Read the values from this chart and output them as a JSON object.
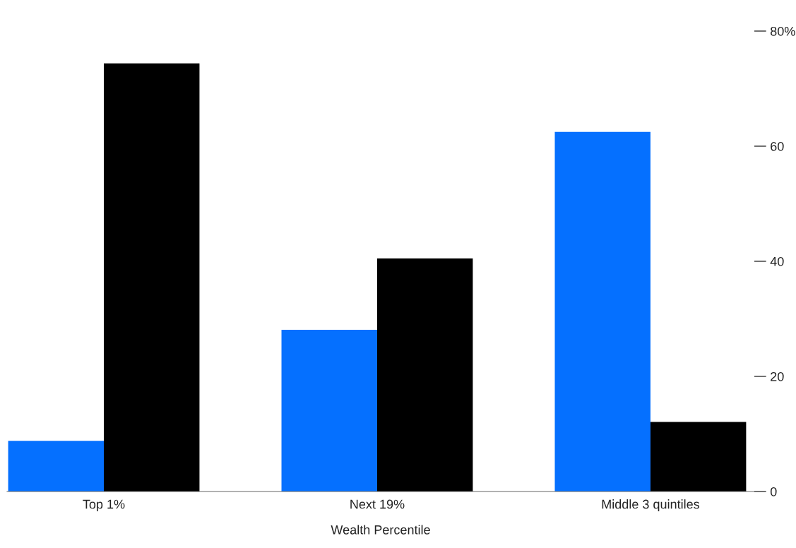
{
  "chart_data": {
    "type": "bar",
    "xlabel": "Wealth Percentile",
    "categories": [
      "Top 1%",
      "Next 19%",
      "Middle 3 quintiles"
    ],
    "series": [
      {
        "color": "#0570ff",
        "values": [
          8.8,
          28.1,
          62.5
        ]
      },
      {
        "color": "#000000",
        "values": [
          74.4,
          40.5,
          12.1
        ]
      }
    ],
    "ylim": [
      0,
      80
    ],
    "yticks": [
      0,
      20,
      40,
      60,
      {
        "value": 80,
        "label": "80%"
      }
    ],
    "grid": false
  }
}
